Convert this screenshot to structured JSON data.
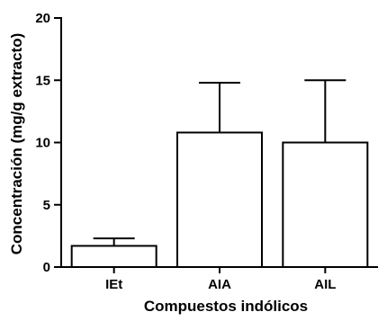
{
  "chart_data": {
    "type": "bar",
    "categories": [
      "IEt",
      "AIA",
      "AIL"
    ],
    "values": [
      1.7,
      10.8,
      10.0
    ],
    "error_upper": [
      0.6,
      4.0,
      5.0
    ],
    "xlabel": "Compuestos indólicos",
    "ylabel": "Concentración (mg/g extracto)",
    "ylim": [
      0,
      20
    ],
    "yticks": [
      0,
      5,
      10,
      15,
      20
    ],
    "ytick_labels": [
      "0",
      "5",
      "10",
      "15",
      "20"
    ],
    "bar_fill": "#ffffff",
    "bar_stroke": "#000000",
    "error_bars": "upper only",
    "grid": false,
    "legend": "none"
  }
}
